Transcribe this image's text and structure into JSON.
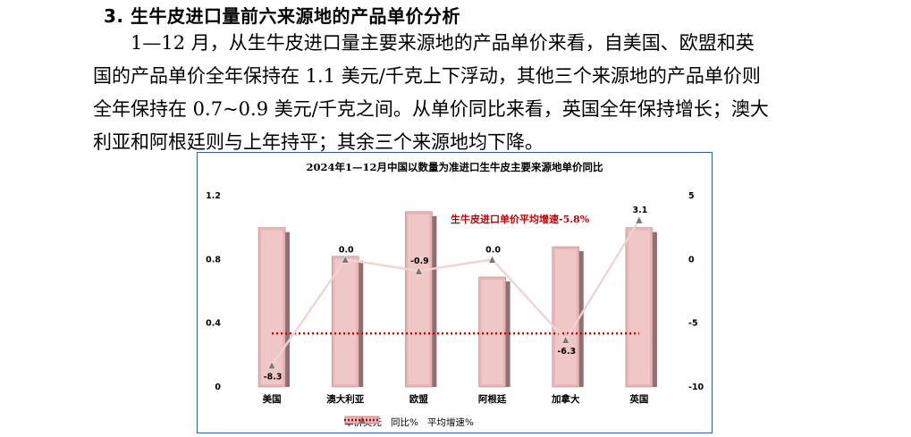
{
  "section": {
    "heading": "3. 生牛皮进口量前六来源地的产品单价分析",
    "lines": [
      "　　1—12 月，从生牛皮进口量主要来源地的产品单价来看，自美国、欧盟和英",
      "国的产品单价全年保持在 1.1 美元/千克上下浮动，其他三个来源地的产品单价则",
      "全年保持在 0.7~0.9 美元/千克之间。从单价同比来看，英国全年保持增长；澳大",
      "利亚和阿根廷则与上年持平；其余三个来源地均下降。"
    ]
  },
  "chart_data": {
    "type": "bar",
    "title": "2024年1—12月中国以数量为准进口生牛皮主要来源地单价同比",
    "annotation": "生牛皮进口单价平均增速-5.8%",
    "categories": [
      "美国",
      "澳大利亚",
      "欧盟",
      "阿根廷",
      "加拿大",
      "英国"
    ],
    "series": [
      {
        "name": "单价美元",
        "type": "bar",
        "axis": "left",
        "values": [
          1.0,
          0.82,
          1.1,
          0.69,
          0.88,
          1.0
        ],
        "color": "#e8b4b4"
      },
      {
        "name": "同比%",
        "type": "line",
        "axis": "right",
        "values": [
          -8.3,
          0.0,
          -0.9,
          0.0,
          -6.3,
          3.1
        ],
        "labels": [
          "-8.3",
          "0.0",
          "-0.9",
          "0.0",
          "-6.3",
          "3.1"
        ],
        "color": "#f2d2d2"
      },
      {
        "name": "平均增速%",
        "type": "line",
        "axis": "right",
        "style": "dotted",
        "values": [
          -5.8,
          -5.8,
          -5.8,
          -5.8,
          -5.8,
          -5.8
        ],
        "color": "#c00000"
      }
    ],
    "y_left": {
      "min": 0,
      "max": 1.2,
      "ticks": [
        "0",
        "0.4",
        "0.8",
        "1.2"
      ]
    },
    "y_right": {
      "min": -10,
      "max": 5,
      "ticks": [
        "-10",
        "-5",
        "0",
        "5"
      ]
    },
    "legend": "bottom",
    "grid": false
  }
}
